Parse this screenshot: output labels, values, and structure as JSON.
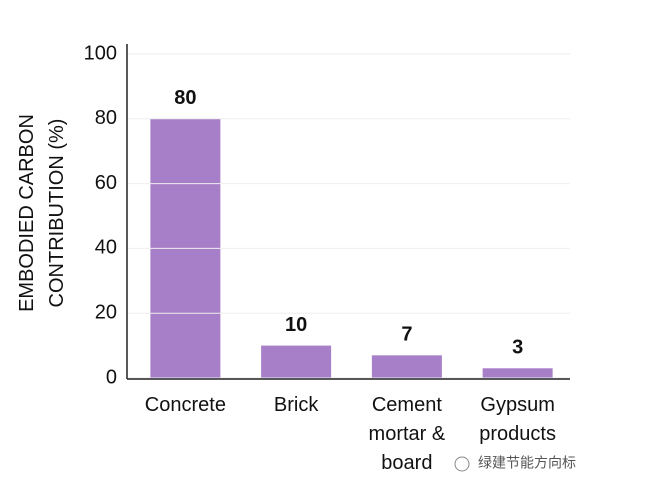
{
  "chart_data": {
    "type": "bar",
    "y_label": "EMBODIED CARBON CONTRIBUTION (%)",
    "categories": [
      "Concrete",
      "Brick",
      "Cement mortar & board",
      "Gypsum products"
    ],
    "values": [
      80,
      10,
      7,
      3
    ],
    "color": "#a77fc9",
    "ylim": [
      0,
      100
    ],
    "yticks": [
      0,
      20,
      40,
      60,
      80,
      100
    ],
    "grid": true
  },
  "watermark": "绿建节能方向标"
}
